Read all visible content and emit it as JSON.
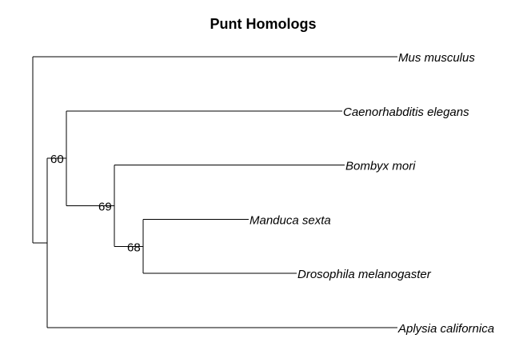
{
  "title": "Punt Homologs",
  "tree": {
    "root": {
      "children": [
        {
          "name": "Mus musculus",
          "length": 0.76
        },
        {
          "length": 0.03,
          "children": [
            {
              "length": 0.04,
              "support": "60",
              "children": [
                {
                  "name": "Caenorhabditis elegans",
                  "length": 0.575
                },
                {
                  "length": 0.1,
                  "support": "69",
                  "children": [
                    {
                      "name": "Bombyx mori",
                      "length": 0.48
                    },
                    {
                      "length": 0.06,
                      "support": "68",
                      "children": [
                        {
                          "name": "Manduca sexta",
                          "length": 0.22
                        },
                        {
                          "name": "Drosophila melanogaster",
                          "length": 0.32
                        }
                      ]
                    }
                  ]
                }
              ]
            },
            {
              "name": "Aplysia californica",
              "length": 0.73
            }
          ]
        }
      ]
    }
  }
}
